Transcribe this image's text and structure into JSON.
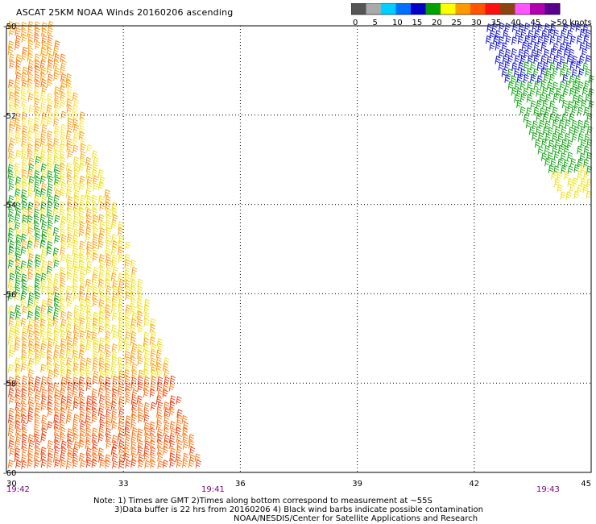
{
  "title": "ASCAT 25KM NOAA Winds 20160206 ascending",
  "colorbar": {
    "labels": [
      "0",
      "5",
      "10",
      "15",
      "20",
      "25",
      "30",
      "35",
      "40",
      "45",
      ">50 knots"
    ],
    "colors": [
      "#555555",
      "#aaaaaa",
      "#00d0ff",
      "#0070ff",
      "#0000c8",
      "#00a000",
      "#ffff00",
      "#ff9900",
      "#ff5500",
      "#ff1010",
      "#8b4513",
      "#ff55ff",
      "#b000b0",
      "#5a0090"
    ]
  },
  "axes": {
    "x_ticks": [
      "30",
      "33",
      "36",
      "39",
      "42",
      "45"
    ],
    "y_ticks": [
      "-50",
      "-52",
      "-54",
      "-56",
      "-58",
      "-60"
    ]
  },
  "times": [
    "19:42",
    "19:41",
    "19:43"
  ],
  "notes": [
    "Note: 1) Times are GMT 2)Times along bottom correspond to measurement at ~55S",
    "3)Data buffer is 22 hrs from 20160206 4) Black wind barbs indicate possible contamination",
    "NOAA/NESDIS/Center for Satellite Applications and Research"
  ],
  "wind_swaths": [
    {
      "region": "west",
      "lat_range": [
        -60,
        -50
      ],
      "lon_range": [
        30,
        34.8
      ],
      "dominant_knots": "20-30"
    },
    {
      "region": "northeast",
      "lat_range": [
        -54,
        -50
      ],
      "lon_range": [
        42.2,
        45
      ],
      "dominant_knots": "10-25"
    }
  ]
}
